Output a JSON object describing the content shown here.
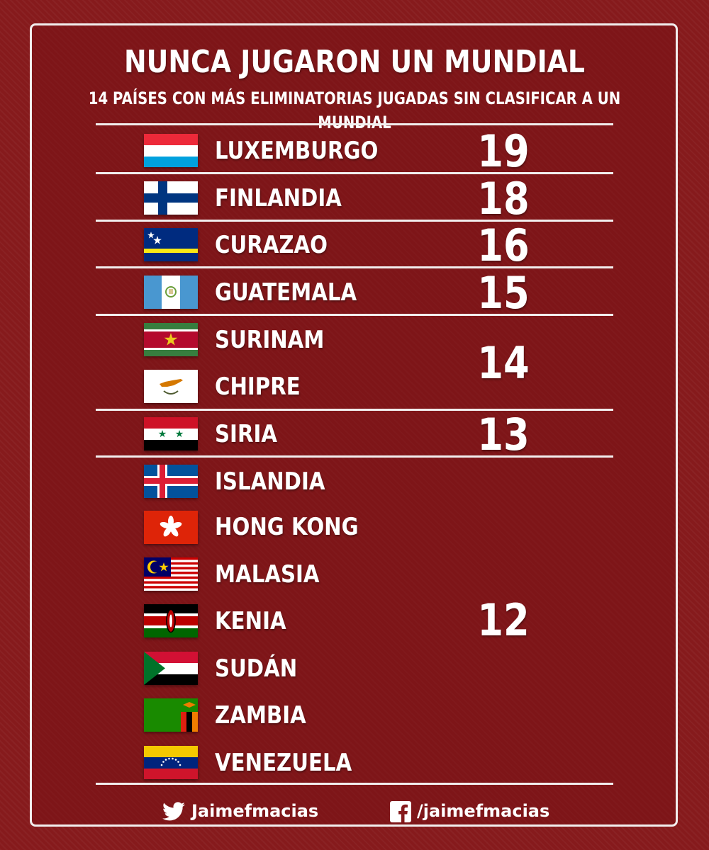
{
  "title": "NUNCA JUGARON UN MUNDIAL",
  "subtitle": "14 PAÍSES CON MÁS ELIMINATORIAS JUGADAS SIN CLASIFICAR A UN MUNDIAL",
  "groups": [
    {
      "value": "19",
      "countries": [
        {
          "name": "LUXEMBURGO",
          "flag": "luxembourg-flag"
        }
      ]
    },
    {
      "value": "18",
      "countries": [
        {
          "name": "FINLANDIA",
          "flag": "finland-flag"
        }
      ]
    },
    {
      "value": "16",
      "countries": [
        {
          "name": "CURAZAO",
          "flag": "curacao-flag"
        }
      ]
    },
    {
      "value": "15",
      "countries": [
        {
          "name": "GUATEMALA",
          "flag": "guatemala-flag"
        }
      ]
    },
    {
      "value": "14",
      "countries": [
        {
          "name": "SURINAM",
          "flag": "suriname-flag"
        },
        {
          "name": "CHIPRE",
          "flag": "cyprus-flag"
        }
      ]
    },
    {
      "value": "13",
      "countries": [
        {
          "name": "SIRIA",
          "flag": "syria-flag"
        }
      ]
    },
    {
      "value": "12",
      "countries": [
        {
          "name": "ISLANDIA",
          "flag": "iceland-flag"
        },
        {
          "name": "HONG KONG",
          "flag": "hong-kong-flag"
        },
        {
          "name": "MALASIA",
          "flag": "malaysia-flag"
        },
        {
          "name": "KENIA",
          "flag": "kenya-flag"
        },
        {
          "name": "SUDÁN",
          "flag": "sudan-flag"
        },
        {
          "name": "ZAMBIA",
          "flag": "zambia-flag"
        },
        {
          "name": "VENEZUELA",
          "flag": "venezuela-flag"
        }
      ]
    }
  ],
  "footer": {
    "twitter_icon": "twitter-bird-icon",
    "twitter_handle": "Jaimefmacias",
    "facebook_icon": "facebook-icon",
    "facebook_handle": "/jaimefmacias"
  },
  "colors": {
    "background": "#861a1c",
    "text": "#ffffff",
    "rule": "#f2eeee"
  }
}
